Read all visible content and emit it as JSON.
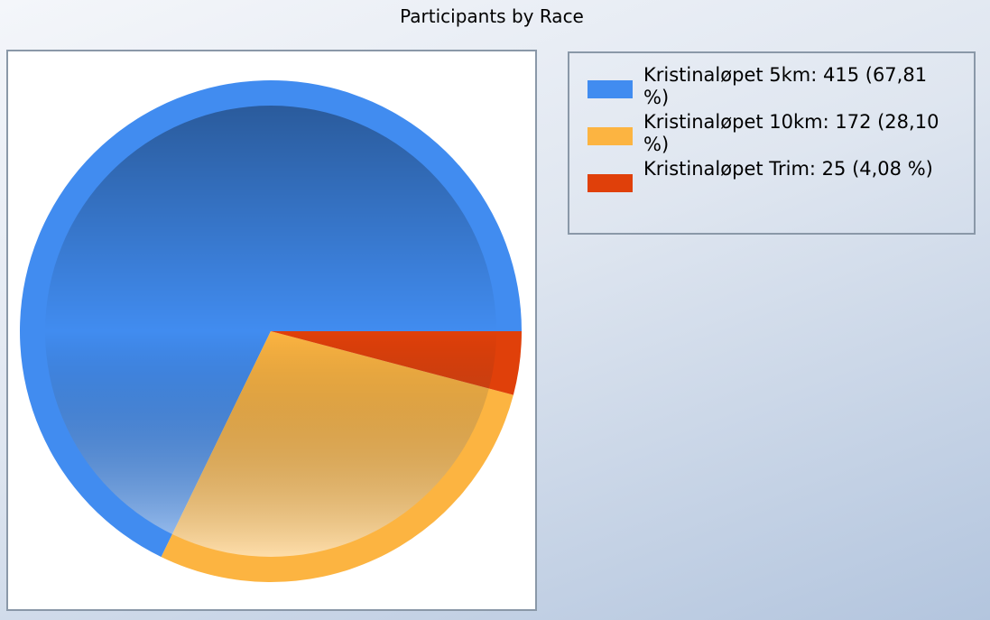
{
  "chart_data": {
    "type": "pie",
    "title": "Participants by Race",
    "categories": [
      "Kristinaløpet 5km: 415 (67,81 %)",
      "Kristinaløpet 10km: 172 (28,10 %)",
      "Kristinaløpet Trim: 25 (4,08 %)"
    ],
    "values": [
      415,
      172,
      25
    ],
    "colors": [
      "#418cf0",
      "#fcb441",
      "#e0400a"
    ],
    "start_angle": 0,
    "direction": "counterclockwise"
  }
}
